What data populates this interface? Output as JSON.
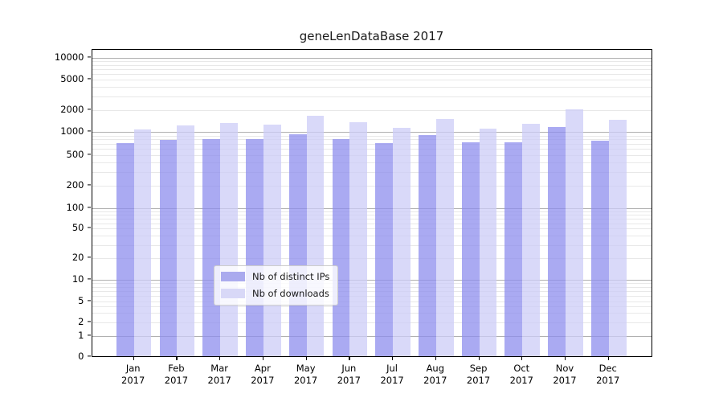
{
  "chart_data": {
    "type": "bar",
    "title": "geneLenDataBase 2017",
    "categories": [
      "Jan",
      "Feb",
      "Mar",
      "Apr",
      "May",
      "Jun",
      "Jul",
      "Aug",
      "Sep",
      "Oct",
      "Nov",
      "Dec"
    ],
    "x_year_label": "2017",
    "series": [
      {
        "name": "Nb of distinct IPs",
        "fill": "rgba(141,141,238,0.75)",
        "legend_color": "#aaaaee",
        "values": [
          680,
          750,
          780,
          780,
          890,
          770,
          680,
          880,
          700,
          700,
          1130,
          730
        ]
      },
      {
        "name": "Nb of downloads",
        "fill": "rgba(204,204,247,0.75)",
        "legend_color": "#d8d8f7",
        "values": [
          1050,
          1170,
          1260,
          1200,
          1580,
          1290,
          1100,
          1450,
          1060,
          1230,
          1950,
          1410
        ]
      }
    ],
    "yscale": "symlog",
    "y_ticks": [
      0,
      1,
      2,
      5,
      10,
      20,
      50,
      100,
      200,
      500,
      1000,
      2000,
      5000,
      10000
    ],
    "y_major_gridlines": [
      1,
      10,
      100,
      1000,
      10000
    ],
    "ylim": [
      0,
      13000
    ],
    "grid": true,
    "legend_position": "lower center",
    "colors": {
      "major_grid": "#b0b0b0",
      "minor_grid": "#e8e8e8",
      "axis": "#000000",
      "background": "#ffffff"
    }
  }
}
